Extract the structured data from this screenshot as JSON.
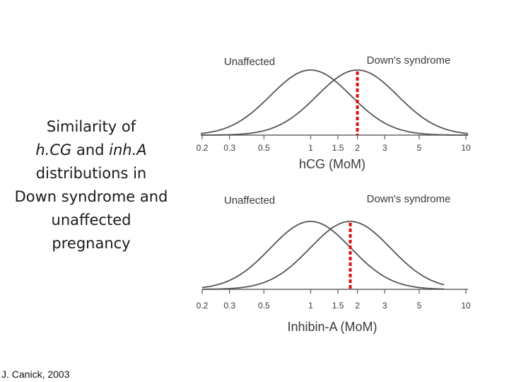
{
  "title": {
    "line1": "Similarity of",
    "line2_a": "h.CG",
    "line2_b": " and ",
    "line2_c": "inh.A",
    "line3": "distributions in",
    "line4": "Down syndrome and",
    "line5": "unaffected",
    "line6": "pregnancy"
  },
  "credit": "J. Canick, 2003",
  "colors": {
    "curve": "#555555",
    "marker": "#dd1111",
    "axis": "#666666"
  },
  "chart_data": [
    {
      "type": "line",
      "xlabel": "hCG (MoM)",
      "xscale": "log",
      "xlim": [
        0.2,
        10
      ],
      "xticks": [
        0.2,
        0.3,
        0.5,
        1,
        1.5,
        2,
        3,
        5,
        10
      ],
      "xtick_labels": [
        "0.2",
        "0.3",
        "0.5",
        "1",
        "1.5",
        "2",
        "3",
        "5",
        "10"
      ],
      "series": [
        {
          "name": "Unaffected",
          "median": 1.0
        },
        {
          "name": "Down's syndrome",
          "median": 2.0
        }
      ],
      "marker_x": 2.0
    },
    {
      "type": "line",
      "xlabel": "Inhibin-A (MoM)",
      "xscale": "log",
      "xlim": [
        0.2,
        10
      ],
      "xticks": [
        0.2,
        0.3,
        0.5,
        1,
        1.5,
        2,
        3,
        5,
        10
      ],
      "xtick_labels": [
        "0.2",
        "0.3",
        "0.5",
        "1",
        "1.5",
        "2",
        "3",
        "5",
        "10"
      ],
      "series": [
        {
          "name": "Unaffected",
          "median": 1.0
        },
        {
          "name": "Down's syndrome",
          "median": 1.8
        }
      ],
      "marker_x": 1.8
    }
  ]
}
